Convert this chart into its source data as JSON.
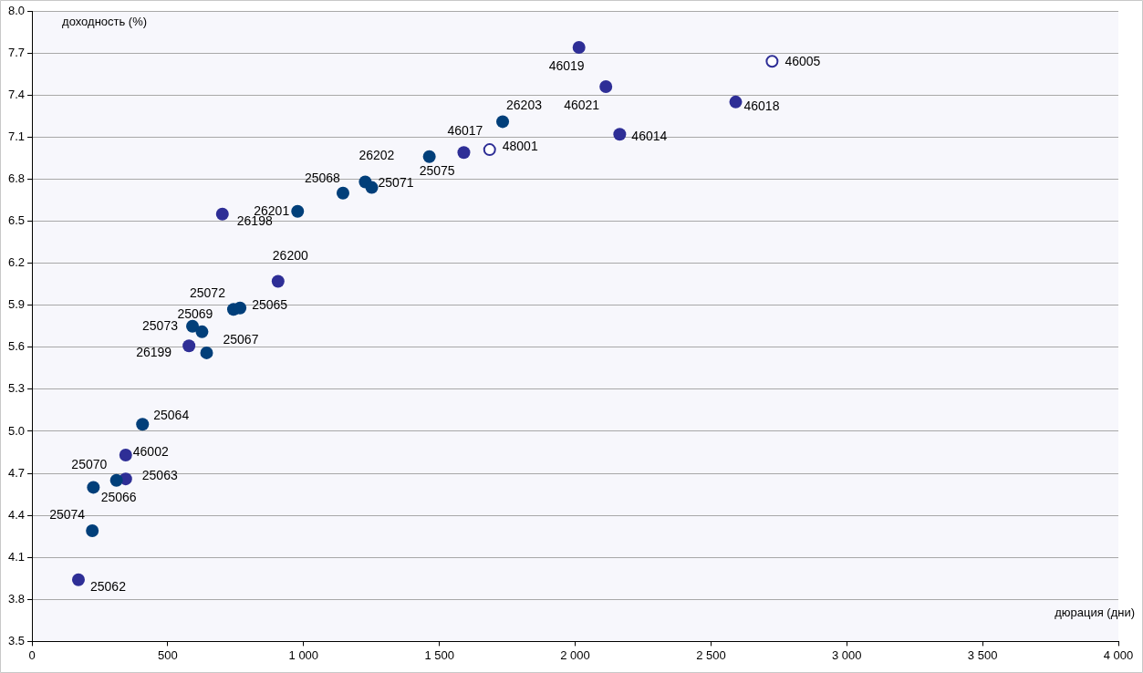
{
  "chart_data": {
    "type": "scatter",
    "xlabel": "дюрация (дни)",
    "ylabel": "доходность (%)",
    "xlim": [
      0,
      4000
    ],
    "xticks": [
      0,
      500,
      {
        "value": 1000,
        "label": "1 000"
      },
      {
        "value": 1500,
        "label": "1 500"
      },
      {
        "value": 2000,
        "label": "2 000"
      },
      {
        "value": 2500,
        "label": "2 500"
      },
      {
        "value": 3000,
        "label": "3 000"
      },
      {
        "value": 3500,
        "label": "3 500"
      },
      {
        "value": 4000,
        "label": "4 000"
      }
    ],
    "ylim": [
      3.5,
      8.0
    ],
    "yticks": [
      3.5,
      3.8,
      4.1,
      4.4,
      4.7,
      {
        "value": 5.0,
        "label": "5.0"
      },
      5.3,
      5.6,
      5.9,
      6.2,
      6.5,
      6.8,
      7.1,
      7.4,
      7.7,
      {
        "value": 8.0,
        "label": "8.0"
      }
    ],
    "grid": "y",
    "legend": false,
    "marker": "circle",
    "series": [
      {
        "color": "#013f7a",
        "x": [
          222,
          226,
          311,
          407,
          591,
          626,
          643,
          742,
          766,
          978,
          1145,
          1227,
          1251,
          1463,
          1733
        ],
        "values": [
          4.29,
          4.6,
          4.65,
          5.05,
          5.75,
          5.71,
          5.56,
          5.87,
          5.88,
          6.57,
          6.7,
          6.78,
          6.74,
          6.96,
          7.21
        ]
      },
      {
        "color": "#2e2e96",
        "x": [
          171,
          345,
          345,
          578,
          906,
          701,
          1590,
          2014,
          2113,
          2164,
          2591
        ],
        "values": [
          3.94,
          4.66,
          4.83,
          5.61,
          6.07,
          6.55,
          6.99,
          7.74,
          7.46,
          7.12,
          7.35
        ]
      },
      {
        "color": "#2e2e96",
        "x": [
          1685,
          2725
        ],
        "values": [
          7.01,
          7.64
        ]
      }
    ],
    "annotations": [
      {
        "text": "25062",
        "x": 171,
        "y": 3.94
      },
      {
        "text": "25074",
        "x": 222,
        "y": 4.29
      },
      {
        "text": "25070",
        "x": 226,
        "y": 4.6
      },
      {
        "text": "25066",
        "x": 311,
        "y": 4.65
      },
      {
        "text": "25063",
        "x": 345,
        "y": 4.66
      },
      {
        "text": "46002",
        "x": 345,
        "y": 4.83
      },
      {
        "text": "25064",
        "x": 407,
        "y": 5.05
      },
      {
        "text": "26199",
        "x": 578,
        "y": 5.61
      },
      {
        "text": "25073",
        "x": 591,
        "y": 5.75
      },
      {
        "text": "25069",
        "x": 626,
        "y": 5.71
      },
      {
        "text": "25067",
        "x": 643,
        "y": 5.56
      },
      {
        "text": "25072",
        "x": 742,
        "y": 5.87
      },
      {
        "text": "25065",
        "x": 766,
        "y": 5.88
      },
      {
        "text": "26200",
        "x": 906,
        "y": 6.07
      },
      {
        "text": "26198",
        "x": 701,
        "y": 6.55
      },
      {
        "text": "26201",
        "x": 978,
        "y": 6.57
      },
      {
        "text": "25068",
        "x": 1145,
        "y": 6.7
      },
      {
        "text": "26202",
        "x": 1227,
        "y": 6.78
      },
      {
        "text": "25071",
        "x": 1251,
        "y": 6.74
      },
      {
        "text": "25075",
        "x": 1463,
        "y": 6.96
      },
      {
        "text": "46017",
        "x": 1590,
        "y": 6.99
      },
      {
        "text": "48001",
        "x": 1685,
        "y": 7.01
      },
      {
        "text": "26203",
        "x": 1733,
        "y": 7.21
      },
      {
        "text": "46019",
        "x": 2014,
        "y": 7.74
      },
      {
        "text": "46021",
        "x": 2113,
        "y": 7.46
      },
      {
        "text": "46014",
        "x": 2164,
        "y": 7.12
      },
      {
        "text": "46018",
        "x": 2591,
        "y": 7.35
      },
      {
        "text": "46005",
        "x": 2725,
        "y": 7.64
      }
    ]
  }
}
